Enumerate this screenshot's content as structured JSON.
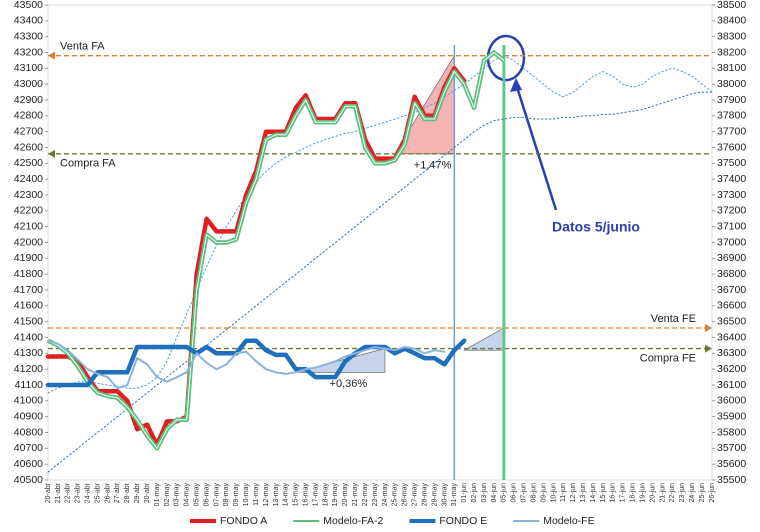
{
  "chart_data": {
    "type": "line",
    "categories": [
      "20-abr",
      "21-abr",
      "22-abr",
      "23-abr",
      "24-abr",
      "25-abr",
      "26-abr",
      "27-abr",
      "28-abr",
      "29-abr",
      "30-abr",
      "01-may",
      "02-may",
      "03-may",
      "04-may",
      "05-may",
      "06-may",
      "07-may",
      "08-may",
      "09-may",
      "10-may",
      "11-may",
      "12-may",
      "13-may",
      "14-may",
      "15-may",
      "16-may",
      "17-may",
      "18-may",
      "19-may",
      "20-may",
      "21-may",
      "22-may",
      "23-may",
      "24-may",
      "25-may",
      "26-may",
      "27-may",
      "28-may",
      "29-may",
      "30-may",
      "31-may",
      "01-jun",
      "02-jun",
      "03-jun",
      "04-jun",
      "05-jun",
      "06-jun",
      "07-jun",
      "08-jun",
      "09-jun",
      "10-jun",
      "11-jun",
      "12-jun",
      "13-jun",
      "14-jun",
      "15-jun",
      "16-jun",
      "17-jun",
      "18-jun",
      "19-jun",
      "20-jun",
      "21-jun",
      "22-jun",
      "23-jun",
      "24-jun",
      "25-jun",
      "26-jun"
    ],
    "ylim": [
      40500,
      43500
    ],
    "yticks": [
      40500,
      40600,
      40700,
      40800,
      40900,
      41000,
      41100,
      41200,
      41300,
      41400,
      41500,
      41600,
      41700,
      41800,
      41900,
      42000,
      42100,
      42200,
      42300,
      42400,
      42500,
      42600,
      42700,
      42800,
      42900,
      43000,
      43100,
      43200,
      43300,
      43400,
      43500
    ],
    "y2lim": [
      35500,
      38500
    ],
    "y2ticks": [
      35500,
      35600,
      35700,
      35800,
      35900,
      36000,
      36100,
      36200,
      36300,
      36400,
      36500,
      36600,
      36700,
      36800,
      36900,
      37000,
      37100,
      37200,
      37300,
      37400,
      37500,
      37600,
      37700,
      37800,
      37900,
      38000,
      38100,
      38200,
      38300,
      38400,
      38500
    ],
    "series": [
      {
        "color": "#2e75b6",
        "style": "dotted",
        "values": [
          40550,
          40600,
          40650,
          40700,
          40750,
          40800,
          40850,
          40900,
          40950,
          41000,
          41050,
          41100,
          41150,
          41200,
          41250,
          41300,
          41350,
          41400,
          41450,
          41500,
          41550,
          41600,
          41650,
          41700,
          41750,
          41800,
          41850,
          41900,
          41950,
          42000,
          42050,
          42100,
          42150,
          42200,
          42250,
          42300,
          42350,
          42400,
          42450,
          42500,
          42550,
          42600,
          42650,
          42700,
          42740,
          42770,
          42780,
          42790,
          42790,
          42780,
          42780,
          42780,
          42790,
          42790,
          42800,
          42800,
          42810,
          42810,
          42820,
          42830,
          42840,
          42860,
          42880,
          42900,
          42920,
          42940,
          42950,
          42950
        ]
      },
      {
        "color": "#4a9fd6",
        "style": "dotted",
        "values": [
          41050,
          41080,
          41100,
          41120,
          41120,
          41110,
          41100,
          41090,
          41080,
          41080,
          41100,
          41150,
          41250,
          41400,
          41550,
          41700,
          41850,
          41980,
          42100,
          42200,
          42300,
          42380,
          42450,
          42500,
          42540,
          42570,
          42600,
          42630,
          42650,
          42670,
          42690,
          42700,
          42720,
          42740,
          42760,
          42780,
          42800,
          42820,
          42850,
          42880,
          42920,
          42960,
          43000,
          43050,
          43100,
          43150,
          43180,
          43150,
          43100,
          43050,
          43000,
          42950,
          42920,
          42950,
          43000,
          43050,
          43080,
          43050,
          43000,
          42980,
          43000,
          43050,
          43080,
          43100,
          43080,
          43050,
          43000,
          42950
        ]
      },
      {
        "name": "FONDO A",
        "color": "#e02020",
        "width": 4.5,
        "values": [
          41280,
          41280,
          41280,
          41250,
          41150,
          41060,
          41060,
          41060,
          41000,
          40820,
          40850,
          40720,
          40870,
          40870,
          40900,
          41800,
          42150,
          42070,
          42070,
          42070,
          42300,
          42450,
          42700,
          42700,
          42700,
          42850,
          42930,
          42780,
          42780,
          42780,
          42880,
          42880,
          42650,
          42530,
          42530,
          42530,
          42650,
          42920,
          42800,
          42800,
          42980,
          43100,
          43020,
          null,
          null,
          null,
          null,
          null,
          null,
          null,
          null,
          null,
          null,
          null,
          null,
          null,
          null,
          null,
          null,
          null,
          null,
          null,
          null,
          null,
          null,
          null,
          null,
          null
        ]
      },
      {
        "name": "Modelo-FA-2",
        "color": "#5cbf7e",
        "width": 2,
        "double": true,
        "values": [
          41380,
          41350,
          41300,
          41220,
          41120,
          41050,
          41030,
          41020,
          40960,
          40880,
          40780,
          40700,
          40820,
          40880,
          40880,
          41700,
          42050,
          42000,
          42000,
          42020,
          42250,
          42400,
          42650,
          42680,
          42680,
          42800,
          42900,
          42760,
          42760,
          42760,
          42860,
          42860,
          42600,
          42500,
          42500,
          42520,
          42620,
          42880,
          42780,
          42780,
          42950,
          43080,
          43000,
          42850,
          43150,
          43200,
          43150,
          null,
          null,
          null,
          null,
          null,
          null,
          null,
          null,
          null,
          null,
          null,
          null,
          null,
          null,
          null,
          null,
          null,
          null,
          null,
          null,
          null
        ]
      },
      {
        "name": "FONDO E",
        "color": "#1f6fbd",
        "width": 4.5,
        "axis": "y2",
        "values": [
          36100,
          36100,
          36100,
          36100,
          36100,
          36180,
          36180,
          36180,
          36180,
          36340,
          36340,
          36340,
          36340,
          36340,
          36340,
          36300,
          36340,
          36300,
          36300,
          36300,
          36380,
          36380,
          36320,
          36290,
          36290,
          36200,
          36200,
          36150,
          36150,
          36150,
          36250,
          36300,
          36340,
          36340,
          36340,
          36300,
          36330,
          36300,
          36270,
          36270,
          36230,
          36320,
          36380,
          null,
          null,
          null,
          null,
          null,
          null,
          null,
          null,
          null,
          null,
          null,
          null,
          null,
          null,
          null,
          null,
          null,
          null,
          null,
          null,
          null,
          null,
          null,
          null,
          null
        ]
      },
      {
        "name": "Modelo-FE",
        "color": "#8ab4dc",
        "width": 2,
        "axis": "y2",
        "values": [
          36380,
          36360,
          36320,
          36260,
          36200,
          36170,
          36150,
          36080,
          36100,
          36270,
          36230,
          36150,
          36120,
          36150,
          36180,
          36300,
          36240,
          36200,
          36230,
          36300,
          36310,
          36250,
          36200,
          36180,
          36170,
          36180,
          36200,
          36210,
          36230,
          36250,
          36280,
          36300,
          36320,
          36340,
          36330,
          36320,
          36340,
          36330,
          36300,
          36320,
          36310,
          null,
          null,
          null,
          null,
          null,
          null,
          null,
          null,
          null,
          null,
          null,
          null,
          null,
          null,
          null,
          null,
          null,
          null,
          null,
          null,
          null,
          null,
          null,
          null,
          null,
          null,
          null
        ]
      }
    ],
    "hlines": [
      {
        "label": "Venta FA",
        "value": 43180,
        "axis": "y",
        "color": "#d9822b",
        "label_pos": "above"
      },
      {
        "label": "Compra FA",
        "value": 42560,
        "axis": "y",
        "color": "#6b7a2e",
        "label_pos": "below"
      },
      {
        "label": "Venta FE",
        "value": 36460,
        "axis": "y2",
        "color": "#d9822b",
        "label_pos": "above"
      },
      {
        "label": "Compra FE",
        "value": 36330,
        "axis": "y2",
        "color": "#6b7a2e",
        "label_pos": "below"
      }
    ],
    "vlines": [
      {
        "category": "05-jun",
        "color": "#5cc98a"
      },
      {
        "category": "31-may",
        "color": "#6a9fd8"
      }
    ],
    "shades": [
      {
        "axis": "y",
        "x": [
          "25-may",
          "31-may"
        ],
        "y": [
          42560,
          43180
        ],
        "color": "#f08080",
        "label": "+1,47%",
        "label_color": "#d02020"
      },
      {
        "axis": "y2",
        "x": [
          "15-may",
          "24-may"
        ],
        "y": [
          36180,
          36330
        ],
        "color": "#9fb8e0",
        "label": "+0,36%",
        "label_color": "#1f4f9d"
      },
      {
        "axis": "y2",
        "x": [
          "01-jun",
          "05-jun"
        ],
        "y": [
          36320,
          36460
        ],
        "color": "#9fb8e0"
      }
    ],
    "callout": "Datos 5/junio"
  }
}
